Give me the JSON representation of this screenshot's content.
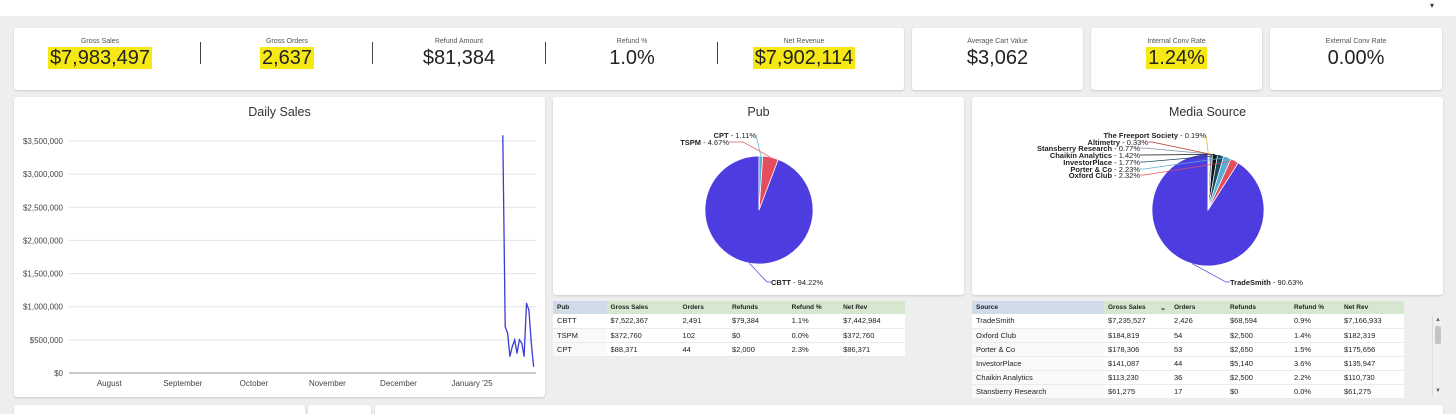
{
  "kpis": [
    {
      "label": "Gross Sales",
      "value": "$7,983,497",
      "highlighted": true
    },
    {
      "label": "Gross Orders",
      "value": "2,637",
      "highlighted": true
    },
    {
      "label": "Refund Amount",
      "value": "$81,384",
      "highlighted": false
    },
    {
      "label": "Refund %",
      "value": "1.0%",
      "highlighted": false
    },
    {
      "label": "Net Revenue",
      "value": "$7,902,114",
      "highlighted": true
    },
    {
      "label": "Average Cart Value",
      "value": "$3,062",
      "highlighted": false
    },
    {
      "label": "Internal Conv Rate",
      "value": "1.24%",
      "highlighted": true
    },
    {
      "label": "External Conv Rate",
      "value": "0.00%",
      "highlighted": false
    }
  ],
  "highlight_color": "#f5e814",
  "daily_sales": {
    "title": "Daily Sales",
    "line_color": "#3b3bd6"
  },
  "pub": {
    "title": "Pub",
    "table": {
      "headers": [
        "Pub",
        "Gross Sales",
        "Orders",
        "Refunds",
        "Refund %",
        "Net Rev"
      ],
      "rows": [
        [
          "CBTT",
          "$7,522,367",
          "2,491",
          "$79,384",
          "1.1%",
          "$7,442,984"
        ],
        [
          "TSPM",
          "$372,760",
          "102",
          "$0",
          "0.0%",
          "$372,760"
        ],
        [
          "CPT",
          "$88,371",
          "44",
          "$2,000",
          "2.3%",
          "$86,371"
        ]
      ]
    }
  },
  "media": {
    "title": "Media Source",
    "table": {
      "headers": [
        "Source",
        "Gross Sales",
        "Orders",
        "Refunds",
        "Refund %",
        "Net Rev"
      ],
      "sort_icon": "chevron-down-icon",
      "rows": [
        [
          "TradeSmith",
          "$7,235,527",
          "2,426",
          "$68,594",
          "0.9%",
          "$7,166,933"
        ],
        [
          "Oxford Club",
          "$184,819",
          "54",
          "$2,500",
          "1.4%",
          "$182,319"
        ],
        [
          "Porter & Co",
          "$178,306",
          "53",
          "$2,650",
          "1.5%",
          "$175,656"
        ],
        [
          "InvestorPlace",
          "$141,087",
          "44",
          "$5,140",
          "3.6%",
          "$135,947"
        ],
        [
          "Chaikin Analytics",
          "$113,230",
          "36",
          "$2,500",
          "2.2%",
          "$110,730"
        ],
        [
          "Stansberry Research",
          "$61,275",
          "17",
          "$0",
          "0.0%",
          "$61,275"
        ]
      ]
    }
  },
  "chart_data": [
    {
      "type": "line",
      "title": "Daily Sales",
      "xlabel": "",
      "ylabel": "",
      "ylim": [
        0,
        3500000
      ],
      "yticks": [
        "$3,500,000",
        "$3,000,000",
        "$2,500,000",
        "$2,000,000",
        "$1,500,000",
        "$1,000,000",
        "$500,000",
        "$0"
      ],
      "yticks_values": [
        3500000,
        3000000,
        2500000,
        2000000,
        1500000,
        1000000,
        500000,
        0
      ],
      "xticks": [
        "August",
        "September",
        "October",
        "November",
        "December",
        "January '25"
      ],
      "x": [
        "2025-01-14",
        "2025-01-15",
        "2025-01-16",
        "2025-01-17",
        "2025-01-18",
        "2025-01-19",
        "2025-01-20",
        "2025-01-21",
        "2025-01-22",
        "2025-01-23",
        "2025-01-24",
        "2025-01-25",
        "2025-01-26",
        "2025-01-27"
      ],
      "series": [
        {
          "values": [
            3580000,
            700000,
            600000,
            250000,
            400000,
            500000,
            300000,
            500000,
            450000,
            250000,
            1050000,
            950000,
            450000,
            100000
          ]
        }
      ],
      "grid": true,
      "color": "#3b3bd6"
    },
    {
      "type": "pie",
      "title": "Pub",
      "labels": [
        "CBTT",
        "TSPM",
        "CPT"
      ],
      "values": [
        94.22,
        4.67,
        1.11
      ],
      "label_text": [
        "CBTT - 94.22%",
        "TSPM - 4.67%",
        "CPT - 1.11%"
      ],
      "colors": [
        "#4d3de0",
        "#e34d5c",
        "#5aaed6"
      ]
    },
    {
      "type": "pie",
      "title": "Media Source",
      "labels": [
        "TradeSmith",
        "Oxford Club",
        "Porter & Co",
        "InvestorPlace",
        "Chaikin Analytics",
        "Stansberry Research",
        "Altimetry",
        "The Freeport Society"
      ],
      "values": [
        90.63,
        2.32,
        2.23,
        1.77,
        1.42,
        0.77,
        0.33,
        0.19
      ],
      "label_text": [
        "TradeSmith - 90.63%",
        "Oxford Club - 2.32%",
        "Porter & Co - 2.23%",
        "InvestorPlace - 1.77%",
        "Chaikin Analytics - 1.42%",
        "Stansberry Research - 0.77%",
        "Altimetry - 0.33%",
        "The Freeport Society - 0.19%"
      ],
      "colors": [
        "#4d3de0",
        "#e34d5c",
        "#5aaed6",
        "#174a5e",
        "#111111",
        "#7a8fa6",
        "#b23a2e",
        "#e8a23c"
      ]
    }
  ]
}
